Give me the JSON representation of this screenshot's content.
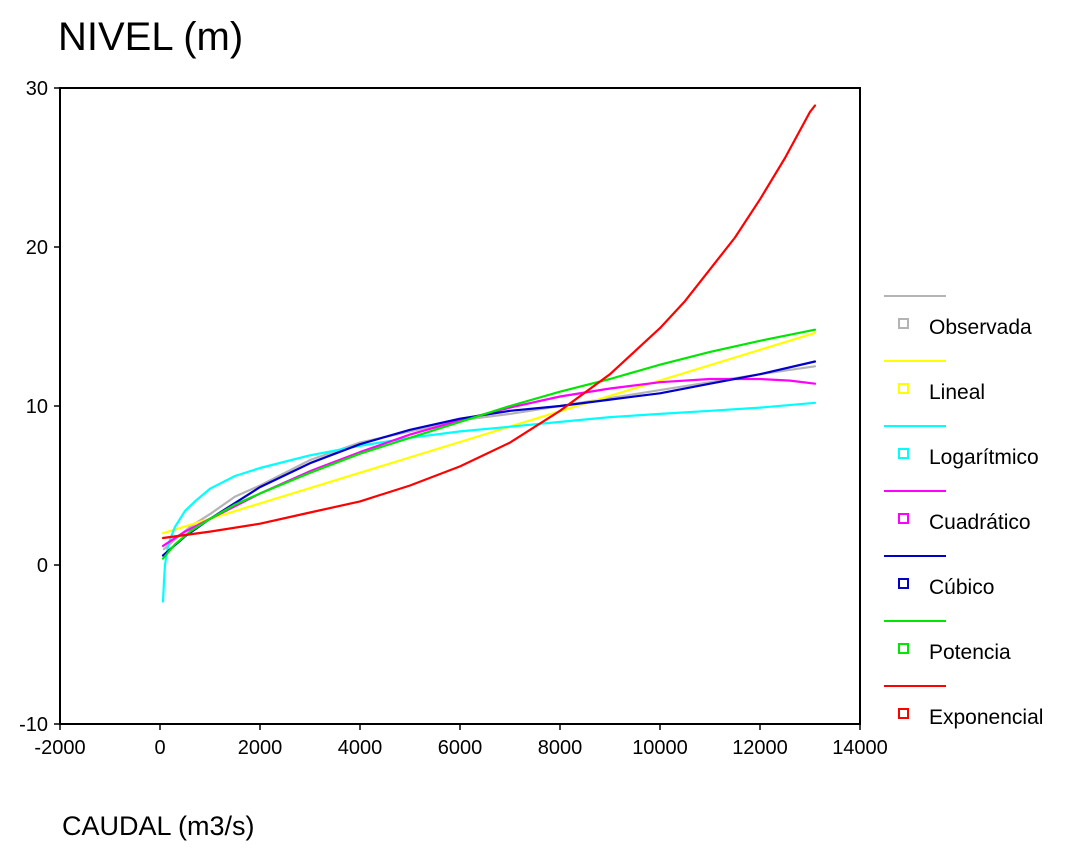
{
  "chart_data": {
    "type": "line",
    "title": "",
    "ylabel": "NIVEL (m)",
    "xlabel": "CAUDAL (m3/s)",
    "xlim": [
      -2000,
      14000
    ],
    "ylim": [
      -10,
      30
    ],
    "xticks": [
      -2000,
      0,
      2000,
      4000,
      6000,
      8000,
      10000,
      12000,
      14000
    ],
    "yticks": [
      -10,
      0,
      10,
      20,
      30
    ],
    "grid": false,
    "legend_position": "right",
    "series": [
      {
        "name": "Observada",
        "color": "#b4b4b4",
        "x": [
          80,
          300,
          600,
          1000,
          1500,
          2000,
          3000,
          4000,
          5000,
          6000,
          7000,
          8000,
          9000,
          10000,
          11000,
          12000,
          13100
        ],
        "y": [
          1.0,
          1.6,
          2.4,
          3.2,
          4.3,
          5.0,
          6.6,
          7.7,
          8.4,
          9.1,
          9.5,
          10.0,
          10.5,
          11.0,
          11.5,
          12.0,
          12.5
        ]
      },
      {
        "name": "Lineal",
        "color": "#ffff00",
        "x": [
          60,
          13100
        ],
        "y": [
          2.0,
          14.6
        ]
      },
      {
        "name": "Logarítmico",
        "color": "#00ffff",
        "x": [
          60,
          80,
          100,
          150,
          200,
          300,
          500,
          700,
          1000,
          1500,
          2000,
          3000,
          4000,
          5000,
          6000,
          7000,
          8000,
          9000,
          10000,
          11000,
          12000,
          13100
        ],
        "y": [
          -2.3,
          -1.0,
          0.0,
          1.0,
          1.6,
          2.4,
          3.4,
          4.0,
          4.8,
          5.6,
          6.1,
          6.9,
          7.5,
          8.0,
          8.4,
          8.7,
          9.0,
          9.3,
          9.5,
          9.7,
          9.9,
          10.2
        ]
      },
      {
        "name": "Cuadrático",
        "color": "#ff00ff",
        "x": [
          60,
          500,
          1000,
          2000,
          3000,
          4000,
          5000,
          6000,
          7000,
          8000,
          9000,
          10000,
          11000,
          12000,
          12600,
          13100
        ],
        "y": [
          1.2,
          2.1,
          2.9,
          4.5,
          5.9,
          7.1,
          8.2,
          9.1,
          9.9,
          10.6,
          11.1,
          11.5,
          11.7,
          11.7,
          11.6,
          11.4
        ]
      },
      {
        "name": "Cúbico",
        "color": "#0000cd",
        "x": [
          60,
          500,
          1000,
          2000,
          3000,
          4000,
          5000,
          6000,
          7000,
          8000,
          9000,
          10000,
          11000,
          12000,
          13100
        ],
        "y": [
          0.6,
          1.8,
          2.9,
          4.9,
          6.4,
          7.6,
          8.5,
          9.2,
          9.7,
          10.0,
          10.4,
          10.8,
          11.4,
          12.0,
          12.8
        ]
      },
      {
        "name": "Potencia",
        "color": "#00e600",
        "x": [
          60,
          300,
          600,
          1000,
          1500,
          2000,
          3000,
          4000,
          5000,
          6000,
          7000,
          8000,
          9000,
          10000,
          11000,
          12000,
          13100
        ],
        "y": [
          0.4,
          1.3,
          2.1,
          2.9,
          3.8,
          4.5,
          5.8,
          7.0,
          8.0,
          9.0,
          10.0,
          10.9,
          11.7,
          12.6,
          13.4,
          14.1,
          14.8
        ]
      },
      {
        "name": "Exponencial",
        "color": "#ff0000",
        "x": [
          60,
          1000,
          2000,
          3000,
          4000,
          5000,
          6000,
          7000,
          8000,
          9000,
          10000,
          10500,
          11000,
          11500,
          12000,
          12500,
          13000,
          13100
        ],
        "y": [
          1.7,
          2.1,
          2.6,
          3.3,
          4.0,
          5.0,
          6.2,
          7.7,
          9.7,
          12.0,
          14.9,
          16.6,
          18.6,
          20.6,
          23.0,
          25.6,
          28.5,
          28.9
        ]
      }
    ]
  }
}
